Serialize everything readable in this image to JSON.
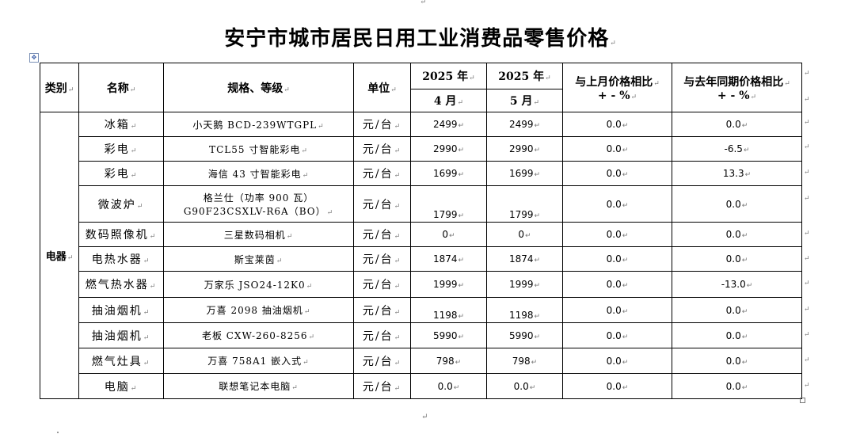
{
  "title": "安宁市城市居民日用工业消费品零售价格",
  "headers": {
    "category": "类别",
    "name": "名称",
    "spec": "规格、等级",
    "unit": "单位",
    "year_col1": "2025 年",
    "year_col2": "2025 年",
    "month_col1": "4 月",
    "month_col2": "5 月",
    "mom": "与上月价格相比",
    "mom_unit": "+ - %",
    "yoy": "与去年同期价格相比",
    "yoy_unit": "+ - %"
  },
  "category": "电器",
  "rows": [
    {
      "name": "冰箱",
      "spec": "小天鹅  BCD-239WTGPL",
      "unit": "元/台",
      "apr": "2499",
      "may": "2499",
      "mom": "0.0",
      "yoy": "0.0"
    },
    {
      "name": "彩电",
      "spec": "TCL55 寸智能彩电",
      "unit": "元/台",
      "apr": "2990",
      "may": "2990",
      "mom": "0.0",
      "yoy": "-6.5"
    },
    {
      "name": "彩电",
      "spec": "海信 43 寸智能彩电",
      "unit": "元/台",
      "apr": "1699",
      "may": "1699",
      "mom": "0.0",
      "yoy": "13.3"
    },
    {
      "name": "微波炉",
      "spec": "格兰仕（功率 900 瓦）",
      "spec2": "G90F23CSXLV-R6A（BO）",
      "unit": "元/台",
      "apr": "1799",
      "may": "1799",
      "mom": "0.0",
      "yoy": "0.0"
    },
    {
      "name": "数码照像机",
      "spec": "三星数码相机",
      "unit": "元/台",
      "apr": "0",
      "may": "0",
      "mom": "0.0",
      "yoy": "0.0"
    },
    {
      "name": "电热水器",
      "spec": "斯宝莱茵",
      "unit": "元/台",
      "apr": "1874",
      "may": "1874",
      "mom": "0.0",
      "yoy": "0.0"
    },
    {
      "name": "燃气热水器",
      "spec": "万家乐 JSO24-12K0",
      "unit": "元/台",
      "apr": "1999",
      "may": "1999",
      "mom": "0.0",
      "yoy": "-13.0"
    },
    {
      "name": "抽油烟机",
      "spec": "万喜 2098 抽油烟机",
      "unit": "元/台",
      "apr": "1198",
      "may": "1198",
      "mom": "0.0",
      "yoy": "0.0"
    },
    {
      "name": "抽油烟机",
      "spec": "老板 CXW-260-8256",
      "unit": "元/台",
      "apr": "5990",
      "may": "5990",
      "mom": "0.0",
      "yoy": "0.0"
    },
    {
      "name": "燃气灶具",
      "spec": "万喜 758A1 嵌入式",
      "unit": "元/台",
      "apr": "798",
      "may": "798",
      "mom": "0.0",
      "yoy": "0.0"
    },
    {
      "name": "电脑",
      "spec": "联想笔记本电脑",
      "unit": "元/台",
      "apr": "0.0",
      "may": "0.0",
      "mom": "0.0",
      "yoy": "0.0"
    }
  ]
}
